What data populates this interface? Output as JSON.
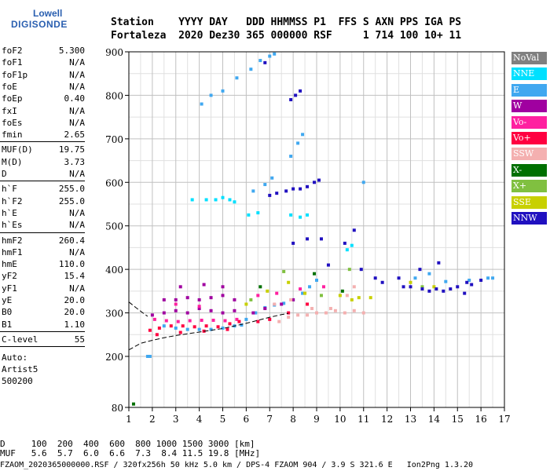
{
  "logo": {
    "line1": "Lowell",
    "line2": "DIGISONDE"
  },
  "header": {
    "line1": "Station    YYYY DAY   DDD HHMMSS P1  FFS S AXN PPS IGA PS",
    "line2": "Fortaleza  2020 Dez30 365 000000 RSF     1 714 100 10+ 11"
  },
  "params_group1": [
    {
      "label": "foF2",
      "value": "5.300"
    },
    {
      "label": "foF1",
      "value": "N/A"
    },
    {
      "label": "foF1p",
      "value": "N/A"
    },
    {
      "label": "foE",
      "value": "N/A"
    },
    {
      "label": "foEp",
      "value": "0.40"
    },
    {
      "label": "fxI",
      "value": "N/A"
    },
    {
      "label": "foEs",
      "value": "N/A"
    },
    {
      "label": "fmin",
      "value": "2.65"
    }
  ],
  "params_group2": [
    {
      "label": "MUF(D)",
      "value": "19.75"
    },
    {
      "label": "M(D)",
      "value": "3.73"
    },
    {
      "label": "D",
      "value": "N/A"
    }
  ],
  "params_group3": [
    {
      "label": "h`F",
      "value": "255.0"
    },
    {
      "label": "h`F2",
      "value": "255.0"
    },
    {
      "label": "h`E",
      "value": "N/A"
    },
    {
      "label": "h`Es",
      "value": "N/A"
    }
  ],
  "params_group4": [
    {
      "label": "hmF2",
      "value": "260.4"
    },
    {
      "label": "hmF1",
      "value": "N/A"
    },
    {
      "label": "hmE",
      "value": "110.0"
    },
    {
      "label": "yF2",
      "value": "15.4"
    },
    {
      "label": "yF1",
      "value": "N/A"
    },
    {
      "label": "yE",
      "value": "20.0"
    },
    {
      "label": "B0",
      "value": "20.0"
    },
    {
      "label": "B1",
      "value": "1.10"
    }
  ],
  "params_group5": [
    {
      "label": "C-level",
      "value": "55"
    }
  ],
  "auto": {
    "line1": "Auto:",
    "line2": "Artist5",
    "line3": "500200"
  },
  "legend": [
    {
      "label": "NoVal",
      "color": "#808080"
    },
    {
      "label": "NNE",
      "color": "#00e0ff"
    },
    {
      "label": "E",
      "color": "#40a8f0"
    },
    {
      "label": "W",
      "color": "#a000a0"
    },
    {
      "label": "Vo-",
      "color": "#ff20a0"
    },
    {
      "label": "Vo+",
      "color": "#ff0040"
    },
    {
      "label": "SSW",
      "color": "#f4b0b0"
    },
    {
      "label": "X-",
      "color": "#007000"
    },
    {
      "label": "X+",
      "color": "#80c040"
    },
    {
      "label": "SSE",
      "color": "#c8d000"
    },
    {
      "label": "NNW",
      "color": "#2010c0"
    }
  ],
  "footer": {
    "line1": "D     100  200  400  600  800 1000 1500 3000 [km]",
    "line2": "MUF   5.6  5.7  6.0  6.6  7.3  8.4 11.5 19.8 [MHz]",
    "source": "FZAOM_2020365000000.RSF / 320fx256h 50 kHz 5.0 km / DPS-4 FZAOM 904 / 3.9 S 321.6 E   Ion2Png 1.3.20"
  },
  "chart_data": {
    "type": "scatter",
    "x_ticks": [
      "1",
      "2",
      "3",
      "4",
      "5",
      "6",
      "7",
      "8",
      "9",
      "10",
      "11",
      "12",
      "13",
      "14",
      "15",
      "16",
      "17"
    ],
    "y_ticks": [
      "80",
      "200",
      "300",
      "400",
      "500",
      "600",
      "700",
      "800",
      "900"
    ],
    "xlim": [
      1,
      17
    ],
    "ylim": [
      80,
      900
    ],
    "grid": true,
    "legend_position": "right",
    "series": [
      {
        "color_key": "NNE",
        "points": [
          [
            3.7,
            560
          ],
          [
            4.3,
            560
          ],
          [
            4.7,
            560
          ],
          [
            5.0,
            565
          ],
          [
            5.3,
            560
          ],
          [
            5.5,
            555
          ],
          [
            7.9,
            525
          ],
          [
            8.3,
            520
          ],
          [
            8.6,
            525
          ],
          [
            6.1,
            525
          ],
          [
            6.5,
            530
          ],
          [
            10.3,
            445
          ],
          [
            10.5,
            455
          ]
        ]
      },
      {
        "color_key": "E",
        "points": [
          [
            1.8,
            200
          ],
          [
            1.9,
            200
          ],
          [
            2.5,
            270
          ],
          [
            3.0,
            265
          ],
          [
            3.5,
            262
          ],
          [
            4.0,
            262
          ],
          [
            4.5,
            262
          ],
          [
            5.0,
            265
          ],
          [
            5.5,
            270
          ],
          [
            5.8,
            272
          ],
          [
            6.0,
            285
          ],
          [
            6.4,
            300
          ],
          [
            6.8,
            312
          ],
          [
            7.2,
            318
          ],
          [
            7.6,
            322
          ],
          [
            8.0,
            330
          ],
          [
            8.4,
            345
          ],
          [
            8.7,
            360
          ],
          [
            9.0,
            375
          ],
          [
            4.1,
            780
          ],
          [
            4.5,
            800
          ],
          [
            5.0,
            810
          ],
          [
            5.6,
            840
          ],
          [
            6.2,
            860
          ],
          [
            6.6,
            880
          ],
          [
            7.0,
            890
          ],
          [
            7.2,
            895
          ],
          [
            7.9,
            660
          ],
          [
            8.2,
            690
          ],
          [
            8.4,
            710
          ],
          [
            6.3,
            580
          ],
          [
            6.8,
            595
          ],
          [
            7.1,
            610
          ],
          [
            11.0,
            600
          ],
          [
            13.2,
            380
          ],
          [
            13.8,
            390
          ],
          [
            14.5,
            372
          ],
          [
            15.5,
            375
          ],
          [
            16.3,
            380
          ],
          [
            16.5,
            380
          ]
        ]
      },
      {
        "color_key": "W",
        "points": [
          [
            2.0,
            295
          ],
          [
            2.5,
            300
          ],
          [
            3.0,
            305
          ],
          [
            3.5,
            300
          ],
          [
            4.0,
            310
          ],
          [
            4.5,
            305
          ],
          [
            5.0,
            300
          ],
          [
            5.5,
            305
          ],
          [
            2.5,
            330
          ],
          [
            3.0,
            330
          ],
          [
            3.5,
            335
          ],
          [
            4.0,
            330
          ],
          [
            4.5,
            335
          ],
          [
            5.0,
            340
          ],
          [
            5.5,
            330
          ],
          [
            6.3,
            300
          ],
          [
            6.8,
            310
          ],
          [
            7.5,
            320
          ],
          [
            8.0,
            330
          ],
          [
            3.2,
            360
          ],
          [
            4.2,
            365
          ],
          [
            5.0,
            360
          ]
        ]
      },
      {
        "color_key": "Vo-",
        "points": [
          [
            2.1,
            285
          ],
          [
            2.6,
            282
          ],
          [
            3.1,
            280
          ],
          [
            3.6,
            282
          ],
          [
            4.1,
            283
          ],
          [
            4.6,
            283
          ],
          [
            5.1,
            282
          ],
          [
            5.6,
            285
          ],
          [
            6.5,
            340
          ],
          [
            7.3,
            345
          ],
          [
            8.3,
            355
          ],
          [
            9.3,
            360
          ],
          [
            3.0,
            320
          ],
          [
            4.0,
            315
          ]
        ]
      },
      {
        "color_key": "Vo+",
        "points": [
          [
            1.9,
            260
          ],
          [
            2.3,
            265
          ],
          [
            2.8,
            270
          ],
          [
            3.3,
            270
          ],
          [
            3.8,
            268
          ],
          [
            4.3,
            270
          ],
          [
            4.8,
            268
          ],
          [
            5.3,
            275
          ],
          [
            5.7,
            280
          ],
          [
            2.2,
            250
          ],
          [
            3.2,
            255
          ],
          [
            4.2,
            258
          ],
          [
            5.2,
            262
          ],
          [
            6.5,
            280
          ],
          [
            7.0,
            285
          ],
          [
            7.8,
            300
          ],
          [
            8.6,
            320
          ]
        ]
      },
      {
        "color_key": "SSW",
        "points": [
          [
            7.4,
            280
          ],
          [
            7.8,
            290
          ],
          [
            8.2,
            295
          ],
          [
            8.6,
            295
          ],
          [
            9.0,
            300
          ],
          [
            9.4,
            300
          ],
          [
            9.8,
            305
          ],
          [
            10.2,
            300
          ],
          [
            10.6,
            305
          ],
          [
            11.0,
            300
          ],
          [
            7.2,
            320
          ],
          [
            7.9,
            330
          ],
          [
            8.8,
            310
          ],
          [
            9.6,
            310
          ],
          [
            10.3,
            340
          ],
          [
            10.6,
            360
          ]
        ]
      },
      {
        "color_key": "X-",
        "points": [
          [
            1.2,
            88
          ],
          [
            6.6,
            360
          ],
          [
            8.9,
            390
          ],
          [
            10.1,
            350
          ]
        ]
      },
      {
        "color_key": "X+",
        "points": [
          [
            6.2,
            330
          ],
          [
            7.6,
            395
          ],
          [
            9.2,
            340
          ],
          [
            10.4,
            400
          ],
          [
            13.5,
            360
          ]
        ]
      },
      {
        "color_key": "SSE",
        "points": [
          [
            6.0,
            320
          ],
          [
            6.9,
            350
          ],
          [
            7.8,
            370
          ],
          [
            8.5,
            345
          ],
          [
            10.0,
            340
          ],
          [
            10.5,
            330
          ],
          [
            10.8,
            335
          ],
          [
            11.3,
            335
          ],
          [
            13.0,
            370
          ],
          [
            14.0,
            360
          ]
        ]
      },
      {
        "color_key": "NNW",
        "points": [
          [
            7.0,
            570
          ],
          [
            7.3,
            575
          ],
          [
            7.7,
            580
          ],
          [
            8.0,
            585
          ],
          [
            8.3,
            585
          ],
          [
            8.6,
            590
          ],
          [
            8.9,
            600
          ],
          [
            9.1,
            605
          ],
          [
            7.9,
            790
          ],
          [
            8.1,
            800
          ],
          [
            8.3,
            810
          ],
          [
            6.8,
            875
          ],
          [
            8.0,
            460
          ],
          [
            8.6,
            470
          ],
          [
            9.2,
            470
          ],
          [
            9.5,
            410
          ],
          [
            10.2,
            460
          ],
          [
            10.6,
            490
          ],
          [
            10.9,
            400
          ],
          [
            11.5,
            380
          ],
          [
            13.0,
            360
          ],
          [
            13.5,
            355
          ],
          [
            13.8,
            350
          ],
          [
            14.1,
            355
          ],
          [
            14.4,
            350
          ],
          [
            14.7,
            355
          ],
          [
            15.0,
            360
          ],
          [
            15.4,
            370
          ],
          [
            15.6,
            365
          ],
          [
            13.4,
            400
          ],
          [
            14.2,
            415
          ],
          [
            15.3,
            345
          ],
          [
            12.5,
            380
          ],
          [
            12.7,
            360
          ],
          [
            11.8,
            370
          ],
          [
            16.0,
            375
          ]
        ]
      }
    ],
    "fit_curves": [
      {
        "style": "dashed",
        "points": [
          [
            1.0,
            215
          ],
          [
            1.5,
            230
          ],
          [
            2.0,
            237
          ],
          [
            2.5,
            243
          ],
          [
            3.0,
            248
          ],
          [
            3.5,
            252
          ],
          [
            4.0,
            256
          ],
          [
            4.5,
            260
          ],
          [
            5.0,
            264
          ],
          [
            5.5,
            270
          ],
          [
            6.0,
            276
          ],
          [
            6.5,
            283
          ],
          [
            7.0,
            290
          ],
          [
            7.5,
            296
          ],
          [
            7.8,
            299
          ]
        ]
      },
      {
        "style": "dashed",
        "points": [
          [
            1.0,
            325
          ],
          [
            1.3,
            312
          ],
          [
            1.6,
            300
          ],
          [
            1.8,
            292
          ]
        ]
      }
    ]
  }
}
